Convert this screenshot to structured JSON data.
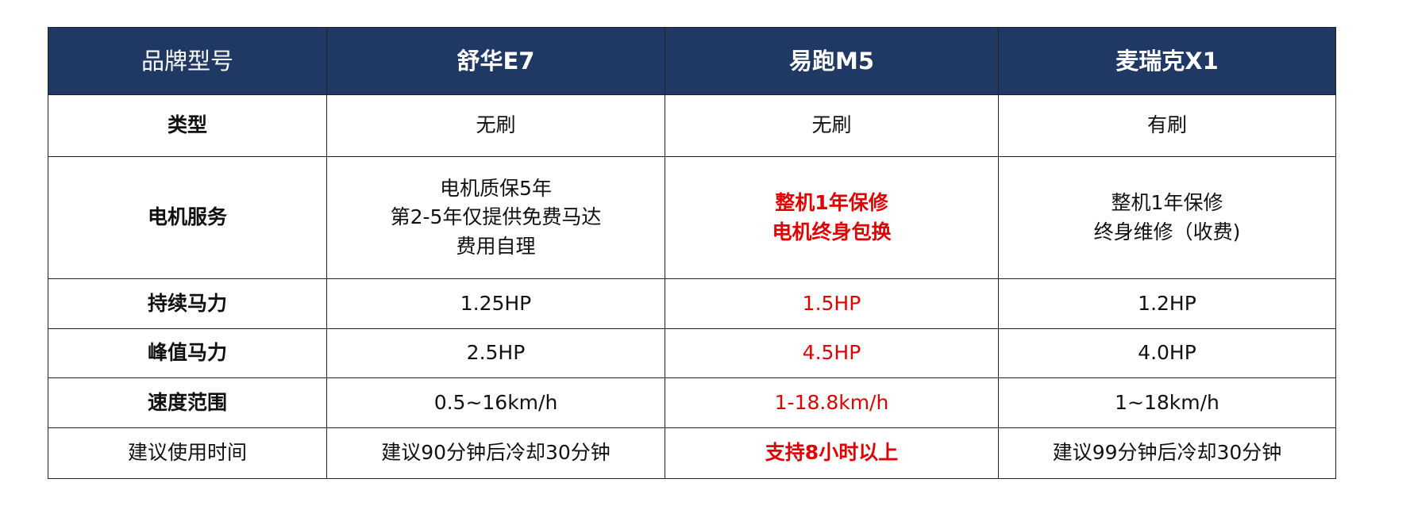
{
  "colors": {
    "header_bg": "#203864",
    "highlight": "#e00000"
  },
  "header": {
    "label": "品牌型号",
    "models": [
      "舒华E7",
      "易跑M5",
      "麦瑞克X1"
    ]
  },
  "rows": [
    {
      "label": "类型",
      "values": [
        "无刷",
        "无刷",
        "有刷"
      ]
    },
    {
      "label": "电机服务",
      "values": [
        [
          "电机质保5年",
          "第2-5年仅提供免费马达",
          "费用自理"
        ],
        [
          "整机1年保修",
          "电机终身包换"
        ],
        [
          "整机1年保修",
          "终身维修（收费)"
        ]
      ]
    },
    {
      "label": "持续马力",
      "values": [
        "1.25HP",
        "1.5HP",
        "1.2HP"
      ]
    },
    {
      "label": "峰值马力",
      "values": [
        "2.5HP",
        "4.5HP",
        "4.0HP"
      ]
    },
    {
      "label": "速度范围",
      "values": [
        "0.5~16km/h",
        "1-18.8km/h",
        "1~18km/h"
      ]
    },
    {
      "label": "建议使用时间",
      "values": [
        "建议90分钟后冷却30分钟",
        "支持8小时以上",
        "建议99分钟后冷却30分钟"
      ]
    }
  ]
}
